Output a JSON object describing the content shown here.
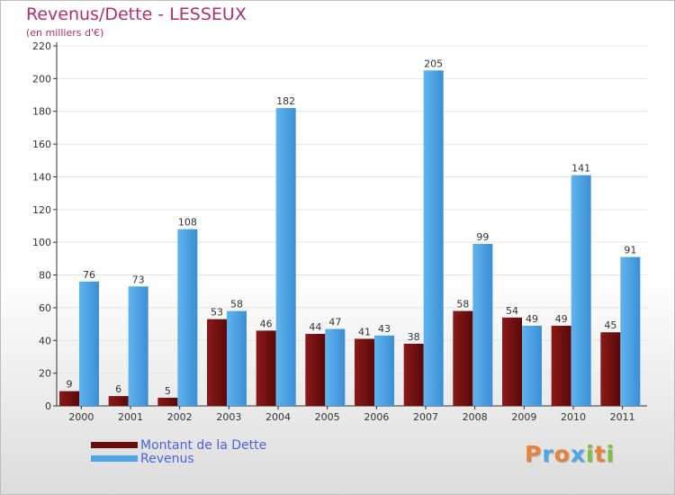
{
  "title": "Revenus/Dette - LESSEUX",
  "subtitle": "(en milliers d'€)",
  "colors": {
    "dette": "#7a1010",
    "revenus": "#4ea6e6",
    "title": "#b0306a",
    "legend_text": "#4a63d9"
  },
  "legend": [
    {
      "label": "Montant de la Dette",
      "color": "#6b0c0c"
    },
    {
      "label": "Revenus",
      "color": "#4ea6e6"
    }
  ],
  "logo": {
    "text": "Proxiti",
    "colors": [
      "#e8813a",
      "#4ea6e6",
      "#e8813a",
      "#4ea6e6",
      "#7bc043",
      "#e8813a",
      "#7bc043"
    ]
  },
  "chart_data": {
    "type": "bar",
    "categories": [
      "2000",
      "2001",
      "2002",
      "2003",
      "2004",
      "2005",
      "2006",
      "2007",
      "2008",
      "2009",
      "2010",
      "2011"
    ],
    "series": [
      {
        "name": "Montant de la Dette",
        "values": [
          9,
          6,
          5,
          53,
          46,
          44,
          41,
          38,
          58,
          54,
          49,
          45
        ]
      },
      {
        "name": "Revenus",
        "values": [
          76,
          73,
          108,
          58,
          182,
          47,
          43,
          205,
          99,
          49,
          141,
          91
        ]
      }
    ],
    "ylim": [
      0,
      220
    ],
    "yticks": [
      0,
      20,
      40,
      60,
      80,
      100,
      120,
      140,
      160,
      180,
      200,
      220
    ],
    "grid": true,
    "legend_position": "bottom-left"
  }
}
